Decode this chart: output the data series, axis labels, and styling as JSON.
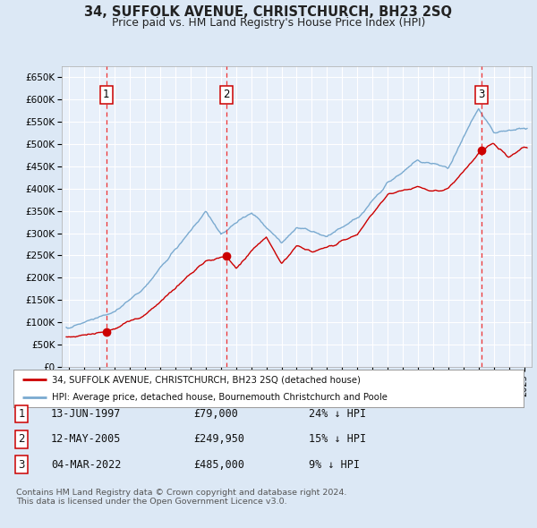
{
  "title": "34, SUFFOLK AVENUE, CHRISTCHURCH, BH23 2SQ",
  "subtitle": "Price paid vs. HM Land Registry's House Price Index (HPI)",
  "yticks": [
    0,
    50000,
    100000,
    150000,
    200000,
    250000,
    300000,
    350000,
    400000,
    450000,
    500000,
    550000,
    600000,
    650000
  ],
  "ytick_labels": [
    "£0",
    "£50K",
    "£100K",
    "£150K",
    "£200K",
    "£250K",
    "£300K",
    "£350K",
    "£400K",
    "£450K",
    "£500K",
    "£550K",
    "£600K",
    "£650K"
  ],
  "xlim_start": 1994.5,
  "xlim_end": 2025.5,
  "ylim_min": 0,
  "ylim_max": 675000,
  "background_color": "#dce8f5",
  "plot_bg_color": "#e8f0fa",
  "grid_color": "#ffffff",
  "sale_color": "#cc0000",
  "hpi_color": "#7aaad0",
  "vline_color": "#ee3333",
  "sales": [
    {
      "year": 1997.44,
      "price": 79000,
      "label": "1"
    },
    {
      "year": 2005.36,
      "price": 249950,
      "label": "2"
    },
    {
      "year": 2022.17,
      "price": 485000,
      "label": "3"
    }
  ],
  "table_data": [
    {
      "num": "1",
      "date": "13-JUN-1997",
      "price": "£79,000",
      "hpi": "24% ↓ HPI"
    },
    {
      "num": "2",
      "date": "12-MAY-2005",
      "price": "£249,950",
      "hpi": "15% ↓ HPI"
    },
    {
      "num": "3",
      "date": "04-MAR-2022",
      "price": "£485,000",
      "hpi": "9% ↓ HPI"
    }
  ],
  "legend_sale": "34, SUFFOLK AVENUE, CHRISTCHURCH, BH23 2SQ (detached house)",
  "legend_hpi": "HPI: Average price, detached house, Bournemouth Christchurch and Poole",
  "footer1": "Contains HM Land Registry data © Crown copyright and database right 2024.",
  "footer2": "This data is licensed under the Open Government Licence v3.0."
}
